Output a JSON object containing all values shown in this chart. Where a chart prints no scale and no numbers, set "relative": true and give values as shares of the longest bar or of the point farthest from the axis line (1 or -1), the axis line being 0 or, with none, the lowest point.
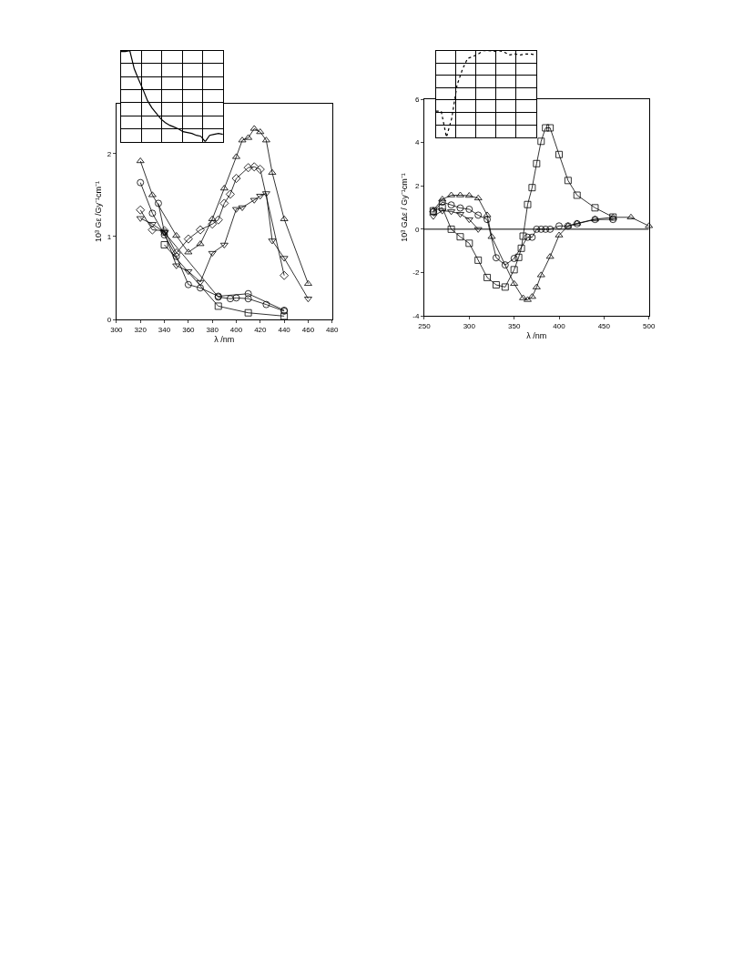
{
  "chart_data": [
    {
      "type": "line",
      "xlabel": "λ /nm",
      "ylabel": "10³ Gε /Gy⁻¹cm⁻¹",
      "xlim": [
        300,
        480
      ],
      "xticks": [
        300,
        320,
        340,
        360,
        380,
        400,
        420,
        440,
        460,
        480
      ],
      "ylim": [
        0,
        2.6
      ],
      "yticks": [
        0,
        1,
        2
      ],
      "grid": false,
      "series": [
        {
          "color": "#000000",
          "marker": "triangle",
          "x": [
            320,
            330,
            350,
            360,
            370,
            380,
            390,
            400,
            405,
            410,
            415,
            420,
            425,
            430,
            440,
            460
          ],
          "values": [
            1.91,
            1.5,
            1.01,
            0.81,
            0.91,
            1.21,
            1.58,
            1.96,
            2.16,
            2.19,
            2.3,
            2.26,
            2.16,
            1.77,
            1.21,
            0.43
          ]
        },
        {
          "color": "#000000",
          "marker": "circle",
          "x": [
            320,
            330,
            340,
            350,
            360,
            370,
            385,
            410,
            440
          ],
          "values": [
            1.65,
            1.28,
            1.02,
            0.76,
            0.42,
            0.38,
            0.28,
            0.31,
            0.11
          ]
        },
        {
          "color": "#000000",
          "marker": "circle",
          "x": [
            335,
            340,
            385,
            395,
            400,
            410,
            425,
            440
          ],
          "values": [
            1.4,
            1.05,
            0.27,
            0.25,
            0.26,
            0.25,
            0.18,
            0.1
          ]
        },
        {
          "color": "#000000",
          "marker": "diamond",
          "x": [
            320,
            330,
            340,
            350,
            360,
            370,
            380,
            385,
            390,
            395,
            400,
            410,
            415,
            420,
            440
          ],
          "values": [
            1.32,
            1.08,
            1.07,
            0.8,
            0.97,
            1.08,
            1.15,
            1.2,
            1.4,
            1.51,
            1.7,
            1.83,
            1.84,
            1.81,
            0.53
          ]
        },
        {
          "color": "#000000",
          "marker": "triangle-down",
          "x": [
            320,
            330,
            340,
            350,
            360,
            370,
            380,
            390,
            400,
            405,
            415,
            420,
            425,
            430,
            440,
            460
          ],
          "values": [
            1.22,
            1.15,
            1.05,
            0.65,
            0.58,
            0.45,
            0.8,
            0.9,
            1.33,
            1.35,
            1.44,
            1.49,
            1.52,
            0.95,
            0.74,
            0.25
          ]
        },
        {
          "color": "#000000",
          "marker": "square",
          "x": [
            340,
            385,
            410,
            440
          ],
          "values": [
            0.9,
            0.16,
            0.08,
            0.04
          ]
        }
      ]
    },
    {
      "type": "line",
      "relative": true,
      "grid": true,
      "categories": [
        null,
        null,
        null,
        null,
        null,
        null,
        null,
        null,
        null,
        null,
        null,
        null,
        null,
        null,
        null,
        null,
        null,
        null,
        null,
        null,
        null,
        null,
        null,
        null
      ],
      "series": [
        {
          "color": "#000000",
          "marker": "none",
          "values": [
            0.99,
            0.99,
            1.0,
            0.8,
            0.68,
            0.57,
            0.45,
            0.37,
            0.31,
            0.25,
            0.21,
            0.18,
            0.16,
            0.14,
            0.11,
            0.1,
            0.09,
            0.07,
            0.06,
            0.0,
            0.07,
            0.08,
            0.09,
            0.08
          ]
        }
      ]
    },
    {
      "type": "line",
      "xlabel": "λ /nm",
      "ylabel": "10³ GΔε / Gy⁻¹cm⁻¹",
      "xlim": [
        250,
        500
      ],
      "xticks": [
        250,
        300,
        350,
        400,
        450,
        500
      ],
      "ylim": [
        -4,
        6
      ],
      "yticks": [
        -4,
        -2,
        0,
        2,
        4,
        6
      ],
      "grid": false,
      "ref_lines": [
        {
          "axis": "y",
          "value": 0,
          "color": "#000000"
        }
      ],
      "series": [
        {
          "color": "#000000",
          "marker": "square",
          "x": [
            260,
            270,
            280,
            290,
            300,
            310,
            320,
            330,
            340,
            350,
            355,
            358,
            360,
            365,
            370,
            375,
            380,
            385,
            390,
            400,
            410,
            420,
            440,
            460
          ],
          "values": [
            0.85,
            1.0,
            0.0,
            -0.35,
            -0.65,
            -1.43,
            -2.23,
            -2.57,
            -2.67,
            -1.87,
            -1.3,
            -0.88,
            -0.32,
            1.14,
            1.92,
            3.03,
            4.06,
            4.68,
            4.68,
            3.45,
            2.25,
            1.57,
            0.99,
            0.56
          ]
        },
        {
          "color": "#000000",
          "marker": "triangle",
          "x": [
            260,
            270,
            280,
            290,
            300,
            310,
            320,
            325,
            350,
            360,
            365,
            370,
            375,
            380,
            390,
            400,
            410,
            420,
            440,
            460,
            480,
            500
          ],
          "values": [
            0.87,
            1.38,
            1.57,
            1.57,
            1.55,
            1.43,
            0.65,
            -0.35,
            -2.52,
            -3.18,
            -3.26,
            -3.12,
            -2.68,
            -2.12,
            -1.27,
            -0.28,
            0.15,
            0.27,
            0.46,
            0.55,
            0.55,
            0.15
          ]
        },
        {
          "color": "#000000",
          "marker": "circle",
          "x": [
            260,
            270,
            280,
            290,
            300,
            310,
            320,
            330,
            340,
            350,
            365,
            370,
            375,
            380,
            385,
            390,
            400,
            410,
            420,
            440,
            460
          ],
          "values": [
            0.8,
            1.25,
            1.12,
            0.98,
            0.92,
            0.65,
            0.45,
            -1.32,
            -1.65,
            -1.35,
            -0.37,
            -0.37,
            0.0,
            0.0,
            0.0,
            0.0,
            0.15,
            0.15,
            0.25,
            0.45,
            0.45
          ]
        },
        {
          "color": "#000000",
          "marker": "triangle-down",
          "x": [
            260,
            270,
            280,
            290,
            300,
            310
          ],
          "values": [
            0.6,
            0.85,
            0.82,
            0.7,
            0.45,
            0.0
          ]
        }
      ]
    },
    {
      "type": "line",
      "relative": true,
      "grid": true,
      "categories": [
        null,
        null,
        null,
        null,
        null,
        null,
        null,
        null,
        null,
        null,
        null,
        null,
        null,
        null,
        null,
        null,
        null,
        null,
        null,
        null
      ],
      "series": [
        {
          "color": "#000000",
          "marker": "none",
          "line_style": "dotted",
          "values": [
            0.3,
            0.3,
            0.0,
            0.22,
            0.6,
            0.78,
            0.91,
            0.93,
            0.96,
            1.0,
            1.0,
            0.99,
            1.0,
            0.98,
            0.95,
            0.96,
            0.95,
            0.96,
            0.96,
            0.95
          ]
        }
      ]
    }
  ]
}
